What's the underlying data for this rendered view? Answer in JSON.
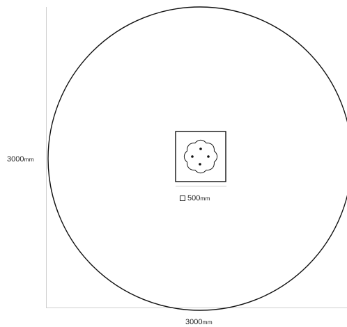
{
  "dimensions": {
    "height": {
      "value": "3000",
      "unit": "mm"
    },
    "width": {
      "value": "3000",
      "unit": "mm"
    },
    "base": {
      "value": "500",
      "unit": "mm",
      "prefix_icon": "square-icon"
    }
  },
  "colors": {
    "outline": "#111111",
    "dimension_line": "#cfcfcf",
    "text": "#222222"
  }
}
